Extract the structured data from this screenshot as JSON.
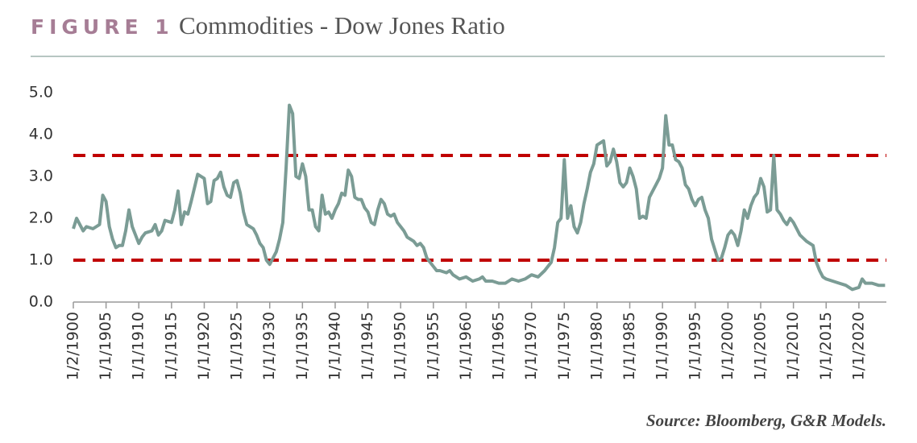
{
  "chart_data": {
    "type": "line",
    "figure_label": "FIGURE 1",
    "title": "Commodities - Dow Jones Ratio",
    "source": "Source: Bloomberg, G&R Models.",
    "x": [
      1900,
      1900.5,
      1901,
      1901.5,
      1902,
      1903,
      1904,
      1904.5,
      1905,
      1905.5,
      1906,
      1906.5,
      1907,
      1907.5,
      1908,
      1908.5,
      1909,
      1909.5,
      1910,
      1910.5,
      1911,
      1912,
      1912.5,
      1913,
      1913.5,
      1914,
      1915,
      1915.5,
      1916,
      1916.5,
      1917,
      1917.5,
      1918,
      1919,
      1920,
      1920.5,
      1921,
      1921.5,
      1922,
      1922.5,
      1923,
      1923.5,
      1924,
      1924.5,
      1925,
      1925.5,
      1926,
      1926.5,
      1927,
      1927.5,
      1928,
      1928.5,
      1929,
      1929.5,
      1930,
      1930.5,
      1931,
      1931.5,
      1932,
      1932.5,
      1933,
      1933.5,
      1934,
      1934.5,
      1935,
      1935.5,
      1936,
      1936.5,
      1937,
      1937.5,
      1938,
      1938.5,
      1939,
      1939.5,
      1940,
      1940.5,
      1941,
      1941.5,
      1942,
      1942.5,
      1943,
      1943.5,
      1944,
      1944.5,
      1945,
      1945.5,
      1946,
      1946.5,
      1947,
      1947.5,
      1948,
      1948.5,
      1949,
      1949.5,
      1950,
      1950.5,
      1951,
      1952,
      1952.5,
      1953,
      1953.5,
      1954,
      1955,
      1955.5,
      1956,
      1957,
      1957.5,
      1958,
      1959,
      1960,
      1960.5,
      1961,
      1962,
      1962.5,
      1963,
      1964,
      1965,
      1966,
      1966.5,
      1967,
      1968,
      1969,
      1970,
      1971,
      1972,
      1973,
      1973.5,
      1974,
      1974.5,
      1975,
      1975.5,
      1976,
      1976.5,
      1977,
      1977.5,
      1978,
      1978.5,
      1979,
      1979.5,
      1980,
      1980.5,
      1981,
      1981.5,
      1982,
      1982.5,
      1983,
      1983.5,
      1984,
      1984.5,
      1985,
      1985.5,
      1986,
      1986.5,
      1987,
      1987.5,
      1988,
      1988.5,
      1989,
      1989.5,
      1990,
      1990.5,
      1991,
      1991.5,
      1992,
      1992.5,
      1993,
      1993.5,
      1994,
      1994.5,
      1995,
      1995.5,
      1996,
      1996.5,
      1997,
      1997.5,
      1998,
      1998.5,
      1999,
      1999.5,
      2000,
      2000.5,
      2001,
      2001.5,
      2002,
      2002.5,
      2003,
      2003.5,
      2004,
      2004.5,
      2005,
      2005.5,
      2006,
      2006.5,
      2007,
      2007.5,
      2008,
      2008.5,
      2009,
      2009.5,
      2010,
      2010.5,
      2011,
      2012,
      2013,
      2013.5,
      2014,
      2014.5,
      2015,
      2016,
      2017,
      2018,
      2019,
      2020,
      2020.5,
      2021,
      2022,
      2023,
      2024
    ],
    "series": [
      {
        "color": "#7b9c95",
        "values": [
          1.75,
          2.0,
          1.85,
          1.7,
          1.8,
          1.75,
          1.85,
          2.55,
          2.4,
          1.8,
          1.5,
          1.3,
          1.35,
          1.35,
          1.7,
          2.2,
          1.8,
          1.6,
          1.4,
          1.55,
          1.65,
          1.7,
          1.85,
          1.6,
          1.7,
          1.95,
          1.9,
          2.2,
          2.65,
          1.85,
          2.15,
          2.1,
          2.4,
          3.05,
          2.95,
          2.35,
          2.4,
          2.9,
          2.95,
          3.1,
          2.75,
          2.55,
          2.5,
          2.85,
          2.9,
          2.6,
          2.15,
          1.85,
          1.8,
          1.75,
          1.6,
          1.4,
          1.3,
          1.0,
          0.9,
          1.05,
          1.2,
          1.5,
          1.9,
          3.2,
          4.7,
          4.5,
          3.0,
          2.95,
          3.3,
          3.0,
          2.2,
          2.2,
          1.8,
          1.7,
          2.55,
          2.1,
          2.15,
          2.0,
          2.2,
          2.35,
          2.6,
          2.55,
          3.15,
          3.0,
          2.5,
          2.45,
          2.45,
          2.25,
          2.15,
          1.9,
          1.85,
          2.2,
          2.45,
          2.35,
          2.1,
          2.05,
          2.1,
          1.9,
          1.8,
          1.7,
          1.55,
          1.45,
          1.35,
          1.4,
          1.3,
          1.05,
          0.85,
          0.75,
          0.75,
          0.7,
          0.75,
          0.65,
          0.55,
          0.6,
          0.55,
          0.5,
          0.55,
          0.6,
          0.5,
          0.5,
          0.45,
          0.45,
          0.5,
          0.55,
          0.5,
          0.55,
          0.65,
          0.6,
          0.75,
          0.95,
          1.3,
          1.9,
          2.0,
          3.4,
          2.0,
          2.3,
          1.8,
          1.65,
          1.9,
          2.35,
          2.7,
          3.1,
          3.3,
          3.75,
          3.8,
          3.85,
          3.25,
          3.35,
          3.65,
          3.35,
          2.85,
          2.75,
          2.85,
          3.2,
          3.0,
          2.7,
          2.0,
          2.05,
          2.0,
          2.5,
          2.65,
          2.8,
          2.95,
          3.2,
          4.45,
          3.75,
          3.75,
          3.4,
          3.35,
          3.2,
          2.8,
          2.7,
          2.45,
          2.3,
          2.45,
          2.5,
          2.2,
          2.0,
          1.5,
          1.25,
          1.0,
          1.05,
          1.3,
          1.6,
          1.7,
          1.6,
          1.35,
          1.7,
          2.2,
          2.0,
          2.3,
          2.5,
          2.6,
          2.95,
          2.75,
          2.15,
          2.2,
          3.5,
          2.2,
          2.1,
          1.95,
          1.85,
          2.0,
          1.9,
          1.75,
          1.6,
          1.45,
          1.35,
          0.95,
          0.75,
          0.6,
          0.55,
          0.5,
          0.45,
          0.4,
          0.3,
          0.35,
          0.55,
          0.45,
          0.45,
          0.4,
          0.4
        ]
      }
    ],
    "hlines": [
      3.5,
      1.0
    ],
    "hline_color": "#c00000",
    "xlim": [
      1900,
      2024.2
    ],
    "xticks": [
      {
        "value": 1900,
        "label": "1/2/1900"
      },
      {
        "value": 1905,
        "label": "1/1/1905"
      },
      {
        "value": 1910,
        "label": "1/1/1910"
      },
      {
        "value": 1915,
        "label": "1/1/1915"
      },
      {
        "value": 1920,
        "label": "1/1/1920"
      },
      {
        "value": 1925,
        "label": "1/1/1925"
      },
      {
        "value": 1930,
        "label": "1/1/1930"
      },
      {
        "value": 1935,
        "label": "1/1/1935"
      },
      {
        "value": 1940,
        "label": "1/1/1940"
      },
      {
        "value": 1945,
        "label": "1/1/1945"
      },
      {
        "value": 1950,
        "label": "1/1/1950"
      },
      {
        "value": 1955,
        "label": "1/1/1955"
      },
      {
        "value": 1960,
        "label": "1/1/1960"
      },
      {
        "value": 1965,
        "label": "1/1/1965"
      },
      {
        "value": 1970,
        "label": "1/1/1970"
      },
      {
        "value": 1975,
        "label": "1/1/1975"
      },
      {
        "value": 1980,
        "label": "1/1/1980"
      },
      {
        "value": 1985,
        "label": "1/1/1985"
      },
      {
        "value": 1990,
        "label": "1/1/1990"
      },
      {
        "value": 1995,
        "label": "1/1/1995"
      },
      {
        "value": 2000,
        "label": "1/1/2000"
      },
      {
        "value": 2005,
        "label": "1/1/2005"
      },
      {
        "value": 2010,
        "label": "1/1/2010"
      },
      {
        "value": 2015,
        "label": "1/1/2015"
      },
      {
        "value": 2020,
        "label": "1/1/2020"
      }
    ],
    "ylim": [
      0,
      5
    ],
    "yticks": [
      {
        "value": 0,
        "label": "0.0"
      },
      {
        "value": 1,
        "label": "1.0"
      },
      {
        "value": 2,
        "label": "2.0"
      },
      {
        "value": 3,
        "label": "3.0"
      },
      {
        "value": 4,
        "label": "4.0"
      },
      {
        "value": 5,
        "label": "5.0"
      }
    ]
  }
}
